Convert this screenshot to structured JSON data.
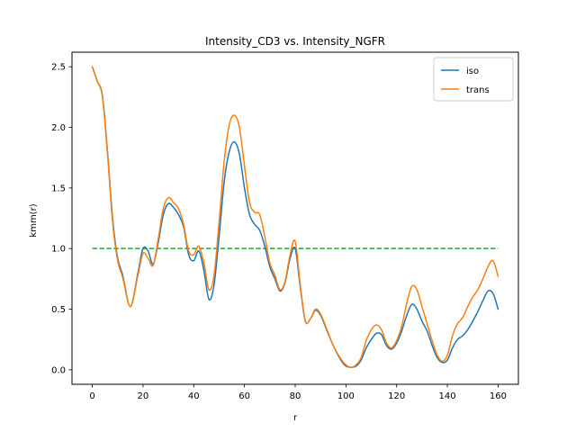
{
  "chart_data": {
    "type": "line",
    "title": "Intensity_CD3 vs. Intensity_NGFR",
    "xlabel": "r",
    "ylabel": "kmm(r)",
    "xlim": [
      -8,
      168
    ],
    "ylim": [
      -0.12,
      2.62
    ],
    "xticks": [
      0,
      20,
      40,
      60,
      80,
      100,
      120,
      140,
      160
    ],
    "yticks": [
      0.0,
      0.5,
      1.0,
      1.5,
      2.0,
      2.5
    ],
    "grid": false,
    "legend_position": "top-right",
    "series": [
      {
        "name": "iso",
        "color": "#1f77b4",
        "dashed": false,
        "x": [
          0,
          2,
          4,
          6,
          8,
          10,
          12,
          15,
          18,
          20,
          22,
          24,
          26,
          28,
          30,
          32,
          34,
          36,
          38,
          40,
          42,
          44,
          46,
          48,
          50,
          52,
          54,
          56,
          58,
          60,
          62,
          64,
          66,
          68,
          70,
          72,
          74,
          76,
          78,
          80,
          82,
          84,
          86,
          88,
          90,
          92,
          95,
          98,
          100,
          102,
          104,
          106,
          108,
          110,
          112,
          114,
          116,
          118,
          120,
          122,
          124,
          126,
          128,
          130,
          132,
          134,
          136,
          138,
          140,
          142,
          144,
          146,
          148,
          150,
          152,
          154,
          156,
          158,
          160
        ],
        "y": [
          2.5,
          2.38,
          2.26,
          1.8,
          1.25,
          0.92,
          0.78,
          0.52,
          0.8,
          1.0,
          0.98,
          0.87,
          1.05,
          1.28,
          1.37,
          1.34,
          1.28,
          1.18,
          0.95,
          0.9,
          0.98,
          0.82,
          0.58,
          0.7,
          1.1,
          1.55,
          1.8,
          1.88,
          1.78,
          1.5,
          1.28,
          1.2,
          1.15,
          1.02,
          0.85,
          0.75,
          0.65,
          0.72,
          0.92,
          1.0,
          0.68,
          0.4,
          0.42,
          0.49,
          0.45,
          0.35,
          0.2,
          0.08,
          0.03,
          0.02,
          0.03,
          0.08,
          0.18,
          0.25,
          0.3,
          0.29,
          0.2,
          0.17,
          0.22,
          0.32,
          0.45,
          0.54,
          0.5,
          0.4,
          0.32,
          0.2,
          0.1,
          0.06,
          0.08,
          0.18,
          0.25,
          0.28,
          0.33,
          0.4,
          0.48,
          0.57,
          0.65,
          0.63,
          0.5
        ]
      },
      {
        "name": "trans",
        "color": "#ff7f0e",
        "dashed": false,
        "x": [
          0,
          2,
          4,
          6,
          8,
          10,
          12,
          15,
          18,
          20,
          22,
          24,
          26,
          28,
          30,
          32,
          34,
          36,
          38,
          40,
          42,
          44,
          46,
          48,
          50,
          52,
          54,
          56,
          58,
          60,
          62,
          64,
          66,
          68,
          70,
          72,
          74,
          76,
          78,
          80,
          82,
          84,
          86,
          88,
          90,
          92,
          95,
          98,
          100,
          102,
          104,
          106,
          108,
          110,
          112,
          114,
          116,
          118,
          120,
          122,
          124,
          126,
          128,
          130,
          132,
          134,
          136,
          138,
          140,
          142,
          144,
          146,
          148,
          150,
          152,
          154,
          156,
          158,
          160
        ],
        "y": [
          2.5,
          2.38,
          2.25,
          1.78,
          1.22,
          0.9,
          0.76,
          0.52,
          0.78,
          0.96,
          0.92,
          0.86,
          1.08,
          1.33,
          1.42,
          1.38,
          1.33,
          1.2,
          0.98,
          0.95,
          1.02,
          0.88,
          0.66,
          0.78,
          1.22,
          1.72,
          2.02,
          2.1,
          2.0,
          1.68,
          1.38,
          1.3,
          1.28,
          1.1,
          0.88,
          0.78,
          0.66,
          0.73,
          0.95,
          1.06,
          0.7,
          0.4,
          0.42,
          0.5,
          0.46,
          0.36,
          0.2,
          0.09,
          0.04,
          0.02,
          0.04,
          0.1,
          0.24,
          0.33,
          0.37,
          0.33,
          0.22,
          0.18,
          0.24,
          0.36,
          0.55,
          0.69,
          0.66,
          0.52,
          0.38,
          0.24,
          0.12,
          0.07,
          0.12,
          0.28,
          0.38,
          0.43,
          0.52,
          0.6,
          0.66,
          0.75,
          0.85,
          0.9,
          0.77
        ]
      },
      {
        "name": "",
        "color": "#2ca02c",
        "dashed": true,
        "x": [
          0,
          160
        ],
        "y": [
          1.0,
          1.0
        ]
      }
    ]
  }
}
